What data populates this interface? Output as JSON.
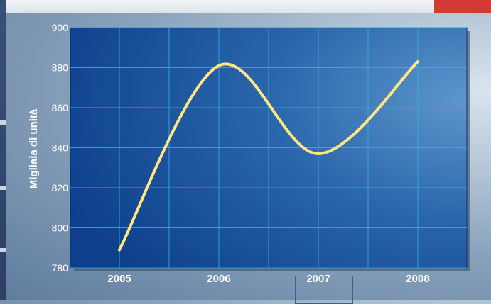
{
  "chart_data": {
    "type": "line",
    "title": "",
    "xlabel": "",
    "ylabel": "Migliaia di unità",
    "x": [
      "2005",
      "2006",
      "2007",
      "2008"
    ],
    "ylim": [
      780,
      900
    ],
    "yticks": [
      780,
      800,
      820,
      840,
      860,
      880,
      900
    ],
    "grid": true,
    "legend": "none",
    "series": [
      {
        "values": [
          789,
          881,
          837,
          883
        ],
        "color": "#ffe680"
      }
    ]
  },
  "colors": {
    "plot_bg_light": "#5e97cc",
    "plot_bg_dark": "#0d3f8c",
    "grid": "#2fb0e6",
    "line": "#ffe680",
    "text": "#ffffff"
  }
}
